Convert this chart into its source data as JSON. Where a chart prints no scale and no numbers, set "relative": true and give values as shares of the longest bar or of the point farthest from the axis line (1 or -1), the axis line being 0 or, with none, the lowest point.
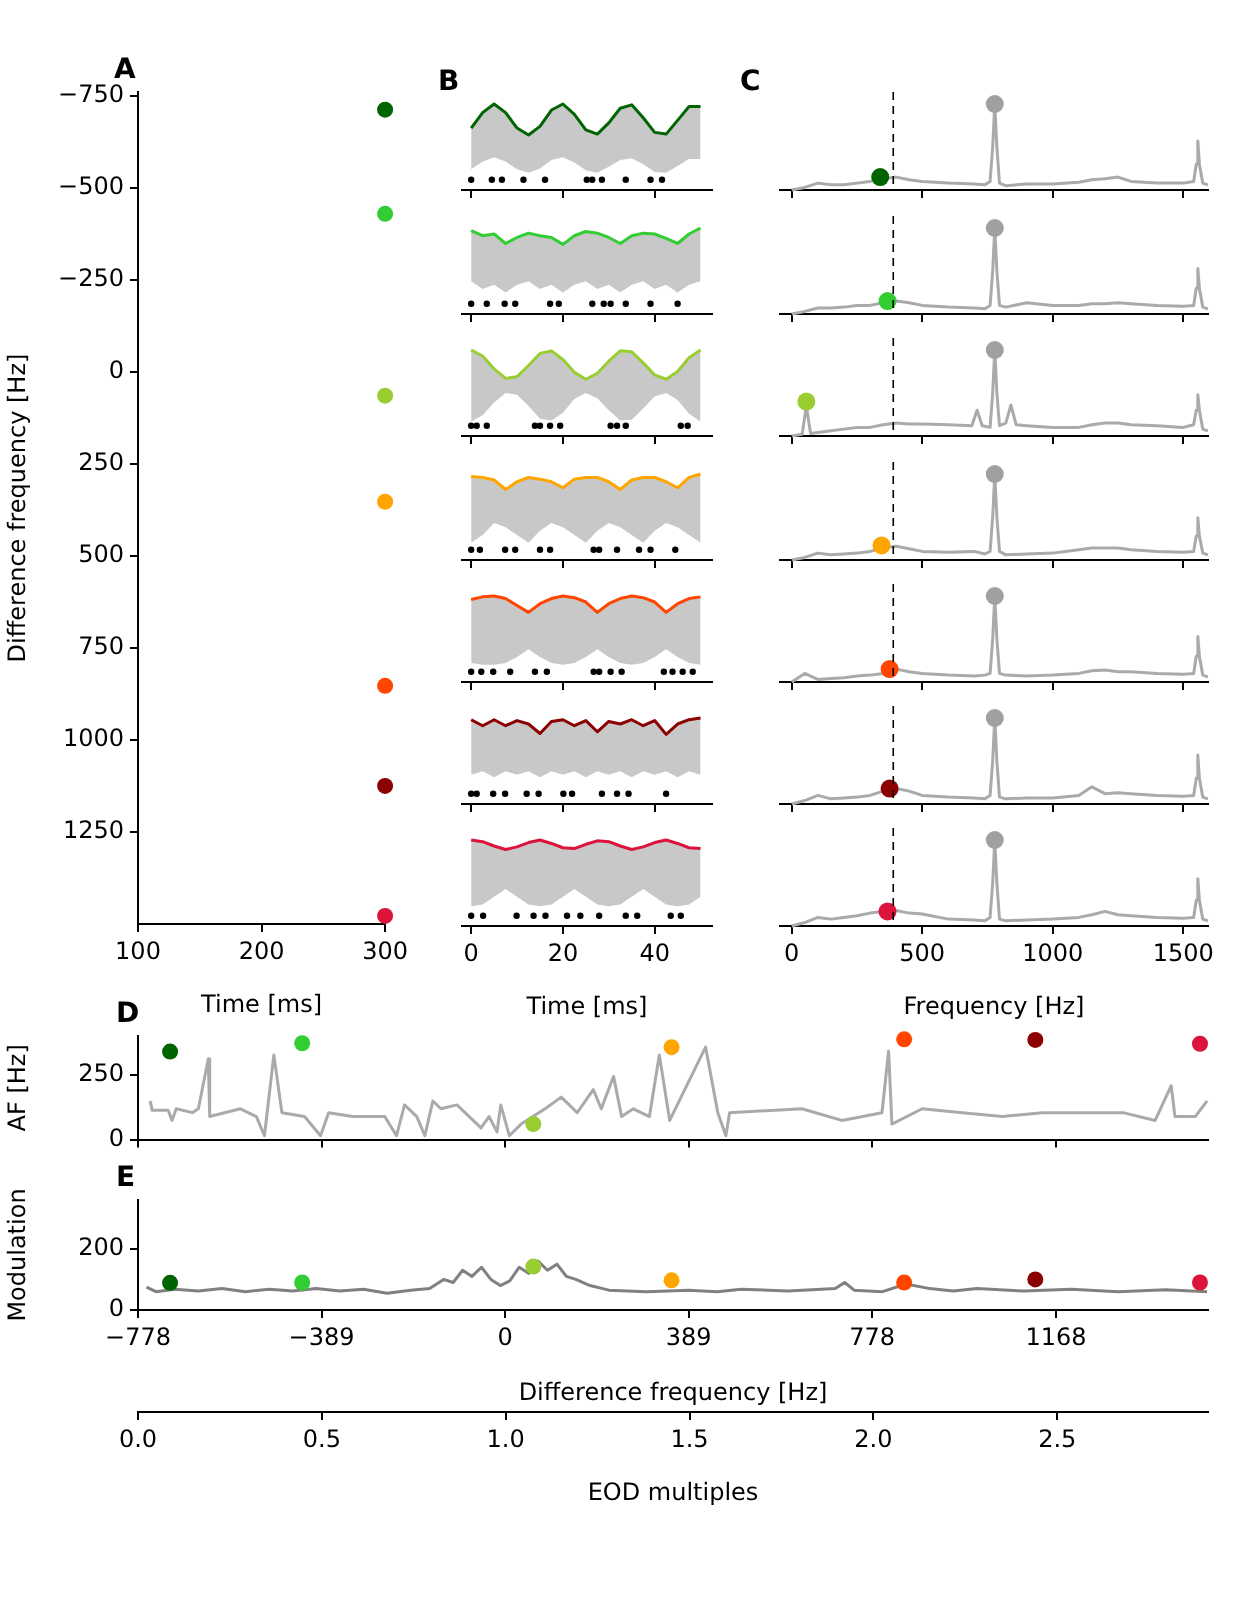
{
  "chart_data": [
    {
      "type": "scatter",
      "title": "A",
      "xlabel": "Time [ms]",
      "ylabel": "Difference frequency [Hz]",
      "xlim": [
        100,
        300
      ],
      "xticks": [
        100,
        200,
        300
      ],
      "ylim": [
        1500,
        -760
      ],
      "yticks": [
        {
          "value": -750,
          "label": "−750"
        },
        {
          "value": -500,
          "label": "−500"
        },
        {
          "value": -250,
          "label": "−250"
        },
        0,
        250,
        500,
        750,
        1000,
        1250
      ],
      "series": [
        {
          "marker": "circle",
          "x": [
            300,
            300,
            300,
            300,
            300,
            300,
            300
          ],
          "values": [
            -712,
            -429,
            65,
            353,
            853,
            1125,
            1478
          ],
          "colors": [
            "#006400",
            "#32cd32",
            "#9acd32",
            "#ffa500",
            "#ff4500",
            "#8b0000",
            "#dc143c"
          ]
        }
      ]
    },
    {
      "type": "line",
      "title": "B",
      "relative": true,
      "tick_labels": false,
      "xlim": [
        -2,
        52.5
      ],
      "xticks": [
        0,
        20,
        40
      ],
      "x": [
        0,
        2.5,
        5,
        7.5,
        10,
        12.5,
        15,
        17.5,
        20,
        22.5,
        25,
        27.5,
        30,
        32.5,
        35,
        37.5,
        40,
        42.5,
        45,
        47.5,
        50
      ],
      "series": [
        {
          "color": "#006400",
          "values": [
            0.72,
            0.9,
            1,
            0.9,
            0.72,
            0.64,
            0.74,
            0.93,
            1,
            0.88,
            0.7,
            0.65,
            0.78,
            0.95,
            0.99,
            0.84,
            0.67,
            0.65,
            0.81,
            0.97,
            0.97
          ],
          "lower": [
            0.24,
            0.33,
            0.38,
            0.33,
            0.24,
            0.2,
            0.25,
            0.35,
            0.38,
            0.32,
            0.23,
            0.2,
            0.27,
            0.35,
            0.37,
            0.3,
            0.21,
            0.2,
            0.28,
            0.36,
            0.36
          ],
          "upper": [
            0.72,
            0.9,
            1,
            0.9,
            0.72,
            0.64,
            0.74,
            0.93,
            1,
            0.88,
            0.7,
            0.65,
            0.78,
            0.95,
            0.99,
            0.84,
            0.67,
            0.65,
            0.81,
            0.97,
            0.97
          ]
        },
        {
          "type": "scatter",
          "marker": "circle",
          "color": "#000000",
          "x": [
            0,
            4.5,
            6.7,
            11.4,
            16.1,
            25.2,
            26.4,
            28.5,
            33.7,
            39.1,
            41.6
          ],
          "values": [
            0.12,
            0.12,
            0.12,
            0.12,
            0.12,
            0.12,
            0.12,
            0.12,
            0.12,
            0.12,
            0.12
          ]
        }
      ]
    },
    {
      "type": "line",
      "relative": true,
      "tick_labels": false,
      "xlim": [
        -2,
        52.5
      ],
      "xticks": [
        0,
        20,
        40
      ],
      "x": [
        0,
        2.5,
        5,
        7.5,
        10,
        12.5,
        15,
        17.5,
        20,
        22.5,
        25,
        27.5,
        30,
        32.5,
        35,
        37.5,
        40,
        42.5,
        45,
        47.5,
        50
      ],
      "series": [
        {
          "color": "#32cd32",
          "values": [
            0.97,
            0.91,
            0.93,
            0.82,
            0.89,
            0.94,
            0.91,
            0.89,
            0.81,
            0.91,
            0.96,
            0.94,
            0.89,
            0.82,
            0.91,
            0.94,
            0.93,
            0.88,
            0.82,
            0.93,
            1
          ],
          "lower": [
            0.38,
            0.29,
            0.34,
            0.25,
            0.34,
            0.38,
            0.29,
            0.34,
            0.25,
            0.34,
            0.38,
            0.29,
            0.34,
            0.25,
            0.34,
            0.38,
            0.29,
            0.34,
            0.25,
            0.34,
            0.38
          ],
          "upper": [
            0.97,
            0.91,
            0.93,
            0.82,
            0.89,
            0.94,
            0.91,
            0.89,
            0.81,
            0.91,
            0.96,
            0.94,
            0.89,
            0.82,
            0.91,
            0.94,
            0.93,
            0.88,
            0.82,
            0.93,
            1
          ]
        },
        {
          "type": "scatter",
          "marker": "circle",
          "color": "#000000",
          "x": [
            0,
            3.4,
            7.3,
            9.6,
            17.2,
            19.1,
            26.4,
            28.9,
            30.4,
            33.7,
            39.1,
            45
          ],
          "values": [
            0.12,
            0.12,
            0.12,
            0.12,
            0.12,
            0.12,
            0.12,
            0.12,
            0.12,
            0.12,
            0.12,
            0.12
          ]
        }
      ]
    },
    {
      "type": "line",
      "relative": true,
      "tick_labels": false,
      "xlim": [
        -2,
        52.5
      ],
      "xticks": [
        0,
        20,
        40
      ],
      "x": [
        0,
        2.5,
        5,
        7.5,
        10,
        12.5,
        15,
        17.5,
        20,
        22.5,
        25,
        27.5,
        30,
        32.5,
        35,
        37.5,
        40,
        42.5,
        45,
        47.5,
        50
      ],
      "series": [
        {
          "color": "#9acd32",
          "values": [
            1,
            0.93,
            0.78,
            0.67,
            0.69,
            0.82,
            0.96,
            0.99,
            0.89,
            0.74,
            0.66,
            0.73,
            0.87,
            0.99,
            0.98,
            0.85,
            0.71,
            0.66,
            0.75,
            0.91,
            1
          ],
          "lower": [
            0.17,
            0.24,
            0.39,
            0.5,
            0.48,
            0.35,
            0.2,
            0.18,
            0.27,
            0.43,
            0.5,
            0.44,
            0.3,
            0.18,
            0.19,
            0.32,
            0.46,
            0.5,
            0.42,
            0.26,
            0.17
          ],
          "upper": [
            1,
            0.93,
            0.78,
            0.67,
            0.69,
            0.82,
            0.96,
            0.99,
            0.89,
            0.74,
            0.66,
            0.73,
            0.87,
            0.99,
            0.98,
            0.85,
            0.71,
            0.66,
            0.75,
            0.91,
            1
          ]
        },
        {
          "type": "scatter",
          "marker": "circle",
          "color": "#000000",
          "x": [
            0,
            1.2,
            3.4,
            13.9,
            15,
            17.2,
            19.4,
            30.4,
            31.8,
            33.7,
            45.7,
            47.2
          ],
          "values": [
            0.12,
            0.12,
            0.12,
            0.12,
            0.12,
            0.12,
            0.12,
            0.12,
            0.12,
            0.12,
            0.12,
            0.12
          ]
        }
      ]
    },
    {
      "type": "line",
      "relative": true,
      "tick_labels": false,
      "xlim": [
        -2,
        52.5
      ],
      "xticks": [
        0,
        20,
        40
      ],
      "x": [
        0,
        2.5,
        5,
        7.5,
        10,
        12.5,
        15,
        17.5,
        20,
        22.5,
        25,
        27.5,
        30,
        32.5,
        35,
        37.5,
        40,
        42.5,
        45,
        47.5,
        50
      ],
      "series": [
        {
          "color": "#ffa500",
          "values": [
            0.97,
            0.96,
            0.93,
            0.82,
            0.91,
            0.96,
            0.94,
            0.91,
            0.84,
            0.94,
            0.96,
            0.96,
            0.91,
            0.82,
            0.93,
            0.96,
            0.96,
            0.91,
            0.84,
            0.96,
            1
          ],
          "lower": [
            0.2,
            0.29,
            0.43,
            0.38,
            0.29,
            0.2,
            0.34,
            0.43,
            0.38,
            0.29,
            0.2,
            0.34,
            0.43,
            0.38,
            0.29,
            0.2,
            0.34,
            0.43,
            0.38,
            0.29,
            0.2
          ],
          "upper": [
            0.97,
            0.96,
            0.93,
            0.82,
            0.91,
            0.96,
            0.94,
            0.91,
            0.84,
            0.94,
            0.96,
            0.96,
            0.91,
            0.82,
            0.93,
            0.96,
            0.96,
            0.91,
            0.84,
            0.96,
            1
          ]
        },
        {
          "type": "scatter",
          "marker": "circle",
          "color": "#000000",
          "x": [
            0,
            1.9,
            7.4,
            9.6,
            15,
            17.2,
            26.7,
            27.9,
            31.8,
            36.6,
            39.1,
            44.5
          ],
          "values": [
            0.12,
            0.12,
            0.12,
            0.12,
            0.12,
            0.12,
            0.12,
            0.12,
            0.12,
            0.12,
            0.12,
            0.12
          ]
        }
      ]
    },
    {
      "type": "line",
      "relative": true,
      "tick_labels": false,
      "xlim": [
        -2,
        52.5
      ],
      "xticks": [
        0,
        20,
        40
      ],
      "x": [
        0,
        2.5,
        5,
        7.5,
        10,
        12.5,
        15,
        17.5,
        20,
        22.5,
        25,
        27.5,
        30,
        32.5,
        35,
        37.5,
        40,
        42.5,
        45,
        47.5,
        50
      ],
      "series": [
        {
          "color": "#ff4500",
          "values": [
            0.96,
            0.99,
            1,
            0.97,
            0.89,
            0.81,
            0.91,
            0.97,
            1,
            0.98,
            0.93,
            0.81,
            0.91,
            0.97,
            1,
            0.98,
            0.93,
            0.81,
            0.91,
            0.97,
            0.99
          ],
          "lower": [
            0.22,
            0.2,
            0.2,
            0.22,
            0.29,
            0.38,
            0.29,
            0.22,
            0.2,
            0.22,
            0.29,
            0.38,
            0.29,
            0.22,
            0.2,
            0.22,
            0.29,
            0.38,
            0.29,
            0.22,
            0.2
          ],
          "upper": [
            0.96,
            0.99,
            1,
            0.97,
            0.89,
            0.81,
            0.91,
            0.97,
            1,
            0.98,
            0.93,
            0.81,
            0.91,
            0.97,
            1,
            0.98,
            0.93,
            0.81,
            0.91,
            0.97,
            0.99
          ]
        },
        {
          "type": "scatter",
          "marker": "circle",
          "color": "#000000",
          "x": [
            0,
            2.2,
            4.8,
            8.5,
            13.9,
            16.5,
            26.7,
            27.9,
            30.4,
            32.8,
            42,
            43.9,
            46.1,
            48.3
          ],
          "values": [
            0.12,
            0.12,
            0.12,
            0.12,
            0.12,
            0.12,
            0.12,
            0.12,
            0.12,
            0.12,
            0.12,
            0.12,
            0.12,
            0.12
          ]
        }
      ]
    },
    {
      "type": "line",
      "relative": true,
      "tick_labels": false,
      "xlim": [
        -2,
        52.5
      ],
      "xticks": [
        0,
        20,
        40
      ],
      "x": [
        0,
        2.5,
        5,
        7.5,
        10,
        12.5,
        15,
        17.5,
        20,
        22.5,
        25,
        27.5,
        30,
        32.5,
        35,
        37.5,
        40,
        42.5,
        45,
        47.5,
        50
      ],
      "series": [
        {
          "color": "#8b0000",
          "values": [
            0.98,
            0.91,
            0.98,
            0.91,
            0.97,
            0.93,
            0.82,
            0.96,
            0.98,
            0.91,
            0.97,
            0.84,
            0.96,
            0.93,
            0.98,
            0.91,
            0.97,
            0.81,
            0.93,
            0.98,
            1
          ],
          "lower": [
            0.34,
            0.38,
            0.31,
            0.38,
            0.34,
            0.38,
            0.31,
            0.38,
            0.34,
            0.38,
            0.31,
            0.38,
            0.34,
            0.38,
            0.31,
            0.38,
            0.34,
            0.38,
            0.31,
            0.38,
            0.34
          ],
          "upper": [
            0.98,
            0.91,
            0.98,
            0.91,
            0.97,
            0.93,
            0.82,
            0.96,
            0.98,
            0.91,
            0.97,
            0.84,
            0.96,
            0.93,
            0.98,
            0.91,
            0.97,
            0.81,
            0.93,
            0.98,
            1
          ]
        },
        {
          "type": "scatter",
          "marker": "circle",
          "color": "#000000",
          "x": [
            0,
            1.2,
            4.8,
            7.4,
            12.1,
            14.7,
            20.1,
            22,
            28.5,
            31.8,
            34.3,
            42.5
          ],
          "values": [
            0.12,
            0.12,
            0.12,
            0.12,
            0.12,
            0.12,
            0.12,
            0.12,
            0.12,
            0.12,
            0.12,
            0.12
          ]
        }
      ]
    },
    {
      "type": "line",
      "relative": true,
      "tick_labels": "x",
      "xlabel": "Time [ms]",
      "xlim": [
        -2,
        52.5
      ],
      "xticks": [
        0,
        20,
        40
      ],
      "x": [
        0,
        2.5,
        5,
        7.5,
        10,
        12.5,
        15,
        17.5,
        20,
        22.5,
        25,
        27.5,
        30,
        32.5,
        35,
        37.5,
        40,
        42.5,
        45,
        47.5,
        50
      ],
      "series": [
        {
          "color": "#dc143c",
          "values": [
            1,
            0.98,
            0.93,
            0.89,
            0.92,
            0.97,
            1,
            0.96,
            0.91,
            0.9,
            0.95,
            0.99,
            0.98,
            0.93,
            0.89,
            0.92,
            0.97,
            1,
            0.96,
            0.91,
            0.9
          ],
          "lower": [
            0.23,
            0.25,
            0.34,
            0.43,
            0.34,
            0.25,
            0.23,
            0.25,
            0.34,
            0.43,
            0.34,
            0.25,
            0.23,
            0.25,
            0.34,
            0.43,
            0.34,
            0.25,
            0.23,
            0.25,
            0.34
          ],
          "upper": [
            1,
            0.98,
            0.93,
            0.89,
            0.92,
            0.97,
            1,
            0.96,
            0.91,
            0.9,
            0.95,
            0.99,
            0.98,
            0.93,
            0.89,
            0.92,
            0.97,
            1,
            0.96,
            0.91,
            0.9
          ]
        },
        {
          "type": "scatter",
          "marker": "circle",
          "color": "#000000",
          "x": [
            0,
            2.6,
            9.9,
            13.6,
            16.2,
            20.9,
            23.8,
            27.9,
            33.7,
            36.2,
            43.5,
            45.7
          ],
          "values": [
            0.12,
            0.12,
            0.12,
            0.12,
            0.12,
            0.12,
            0.12,
            0.12,
            0.12,
            0.12,
            0.12,
            0.12
          ]
        }
      ]
    },
    {
      "type": "line",
      "title": "C",
      "relative": true,
      "tick_labels": false,
      "xlim": [
        -45,
        1595
      ],
      "xticks": [
        0,
        500,
        1000,
        1500
      ],
      "ref_lines": [
        {
          "axis": "x",
          "value": 389,
          "color": "#000000",
          "line_style": "dashed"
        }
      ],
      "x": [
        0,
        50,
        100,
        150,
        200,
        250,
        300,
        350,
        400,
        450,
        500,
        600,
        700,
        740,
        760,
        770,
        778,
        786,
        796,
        820,
        900,
        1000,
        1100,
        1150,
        1200,
        1250,
        1300,
        1400,
        1500,
        1540,
        1550,
        1556,
        1562,
        1575,
        1595
      ],
      "series": [
        {
          "color": "#aaaaaa",
          "values": [
            0,
            0.03,
            0.08,
            0.06,
            0.06,
            0.08,
            0.1,
            0.13,
            0.15,
            0.12,
            0.1,
            0.08,
            0.07,
            0.06,
            0.1,
            0.5,
            1,
            0.5,
            0.08,
            0.05,
            0.07,
            0.07,
            0.09,
            0.12,
            0.13,
            0.15,
            0.1,
            0.08,
            0.08,
            0.1,
            0.3,
            0.57,
            0.3,
            0.08,
            0.06
          ]
        },
        {
          "type": "scatter",
          "marker": "circle",
          "color": "#a0a0a0",
          "x": [
            778
          ],
          "values": [
            1
          ]
        },
        {
          "type": "scatter",
          "marker": "circle",
          "color": "#006400",
          "x": [
            339
          ],
          "values": [
            0.15
          ]
        }
      ]
    },
    {
      "type": "line",
      "relative": true,
      "tick_labels": false,
      "xlim": [
        -45,
        1595
      ],
      "xticks": [
        0,
        500,
        1000,
        1500
      ],
      "ref_lines": [
        {
          "axis": "x",
          "value": 389,
          "color": "#000000",
          "line_style": "dashed"
        }
      ],
      "x": [
        0,
        50,
        100,
        150,
        200,
        250,
        300,
        350,
        400,
        450,
        500,
        600,
        700,
        740,
        760,
        770,
        778,
        786,
        796,
        820,
        900,
        1000,
        1100,
        1150,
        1200,
        1250,
        1300,
        1400,
        1500,
        1540,
        1550,
        1556,
        1562,
        1575,
        1595
      ],
      "series": [
        {
          "color": "#aaaaaa",
          "values": [
            0,
            0.03,
            0.07,
            0.07,
            0.08,
            0.1,
            0.1,
            0.13,
            0.15,
            0.13,
            0.1,
            0.08,
            0.07,
            0.06,
            0.1,
            0.5,
            1,
            0.5,
            0.1,
            0.08,
            0.13,
            0.1,
            0.1,
            0.12,
            0.12,
            0.13,
            0.12,
            0.1,
            0.09,
            0.1,
            0.3,
            0.53,
            0.3,
            0.08,
            0.06
          ]
        },
        {
          "type": "scatter",
          "marker": "circle",
          "color": "#a0a0a0",
          "x": [
            778
          ],
          "values": [
            1
          ]
        },
        {
          "type": "scatter",
          "marker": "circle",
          "color": "#32cd32",
          "x": [
            367
          ],
          "values": [
            0.15
          ]
        }
      ]
    },
    {
      "type": "line",
      "relative": true,
      "tick_labels": false,
      "xlim": [
        -45,
        1595
      ],
      "xticks": [
        0,
        500,
        1000,
        1500
      ],
      "ref_lines": [
        {
          "axis": "x",
          "value": 389,
          "color": "#000000",
          "line_style": "dashed"
        }
      ],
      "series": [
        {
          "color": "#aaaaaa",
          "x": [
            0,
            40,
            56,
            72,
            100,
            150,
            200,
            250,
            300,
            350,
            400,
            450,
            500,
            600,
            690,
            710,
            730,
            760,
            770,
            778,
            786,
            796,
            820,
            840,
            860,
            900,
            1000,
            1100,
            1150,
            1200,
            1250,
            1300,
            1400,
            1500,
            1540,
            1550,
            1556,
            1562,
            1575,
            1595
          ],
          "values": [
            0,
            0.02,
            0.35,
            0.03,
            0.04,
            0.06,
            0.08,
            0.1,
            0.1,
            0.13,
            0.15,
            0.14,
            0.14,
            0.13,
            0.12,
            0.3,
            0.12,
            0.1,
            0.5,
            1,
            0.5,
            0.12,
            0.15,
            0.36,
            0.13,
            0.12,
            0.1,
            0.1,
            0.13,
            0.15,
            0.15,
            0.13,
            0.12,
            0.1,
            0.13,
            0.3,
            0.48,
            0.3,
            0.08,
            0.06
          ]
        },
        {
          "type": "scatter",
          "marker": "circle",
          "color": "#a0a0a0",
          "x": [
            778
          ],
          "values": [
            1
          ]
        },
        {
          "type": "scatter",
          "marker": "circle",
          "color": "#9acd32",
          "x": [
            56
          ],
          "values": [
            0.4
          ]
        }
      ]
    },
    {
      "type": "line",
      "relative": true,
      "tick_labels": false,
      "xlim": [
        -45,
        1595
      ],
      "xticks": [
        0,
        500,
        1000,
        1500
      ],
      "ref_lines": [
        {
          "axis": "x",
          "value": 389,
          "color": "#000000",
          "line_style": "dashed"
        }
      ],
      "x": [
        0,
        50,
        100,
        150,
        200,
        250,
        300,
        350,
        400,
        450,
        500,
        600,
        700,
        740,
        760,
        770,
        778,
        786,
        796,
        820,
        900,
        1000,
        1100,
        1150,
        1200,
        1250,
        1300,
        1400,
        1500,
        1540,
        1550,
        1556,
        1562,
        1575,
        1595
      ],
      "series": [
        {
          "color": "#aaaaaa",
          "values": [
            0,
            0.03,
            0.08,
            0.06,
            0.07,
            0.08,
            0.1,
            0.14,
            0.16,
            0.13,
            0.1,
            0.09,
            0.1,
            0.07,
            0.1,
            0.5,
            1,
            0.5,
            0.1,
            0.06,
            0.07,
            0.08,
            0.12,
            0.14,
            0.14,
            0.14,
            0.12,
            0.1,
            0.09,
            0.1,
            0.28,
            0.49,
            0.28,
            0.08,
            0.06
          ]
        },
        {
          "type": "scatter",
          "marker": "circle",
          "color": "#a0a0a0",
          "x": [
            778
          ],
          "values": [
            1
          ]
        },
        {
          "type": "scatter",
          "marker": "circle",
          "color": "#ffa500",
          "x": [
            344
          ],
          "values": [
            0.17
          ]
        }
      ]
    },
    {
      "type": "line",
      "relative": true,
      "tick_labels": false,
      "xlim": [
        -45,
        1595
      ],
      "xticks": [
        0,
        500,
        1000,
        1500
      ],
      "ref_lines": [
        {
          "axis": "x",
          "value": 389,
          "color": "#000000",
          "line_style": "dashed"
        }
      ],
      "x": [
        0,
        50,
        100,
        150,
        200,
        250,
        300,
        350,
        400,
        450,
        500,
        600,
        700,
        740,
        760,
        770,
        778,
        786,
        796,
        820,
        900,
        1000,
        1100,
        1150,
        1200,
        1250,
        1300,
        1400,
        1500,
        1540,
        1550,
        1556,
        1562,
        1575,
        1595
      ],
      "series": [
        {
          "color": "#aaaaaa",
          "values": [
            0,
            0.1,
            0.03,
            0.04,
            0.05,
            0.07,
            0.08,
            0.1,
            0.15,
            0.12,
            0.1,
            0.08,
            0.07,
            0.08,
            0.1,
            0.5,
            1,
            0.5,
            0.1,
            0.08,
            0.07,
            0.08,
            0.1,
            0.13,
            0.14,
            0.12,
            0.12,
            0.1,
            0.09,
            0.1,
            0.3,
            0.53,
            0.3,
            0.08,
            0.06
          ]
        },
        {
          "type": "scatter",
          "marker": "circle",
          "color": "#a0a0a0",
          "x": [
            778
          ],
          "values": [
            1
          ]
        },
        {
          "type": "scatter",
          "marker": "circle",
          "color": "#ff4500",
          "x": [
            375
          ],
          "values": [
            0.15
          ]
        }
      ]
    },
    {
      "type": "line",
      "relative": true,
      "tick_labels": false,
      "xlim": [
        -45,
        1595
      ],
      "xticks": [
        0,
        500,
        1000,
        1500
      ],
      "ref_lines": [
        {
          "axis": "x",
          "value": 389,
          "color": "#000000",
          "line_style": "dashed"
        }
      ],
      "x": [
        0,
        50,
        100,
        150,
        200,
        250,
        300,
        350,
        400,
        450,
        500,
        600,
        700,
        740,
        760,
        770,
        778,
        786,
        796,
        820,
        900,
        1000,
        1100,
        1150,
        1200,
        1250,
        1300,
        1400,
        1500,
        1540,
        1550,
        1556,
        1562,
        1575,
        1595
      ],
      "series": [
        {
          "color": "#aaaaaa",
          "values": [
            0,
            0.04,
            0.1,
            0.06,
            0.07,
            0.08,
            0.1,
            0.15,
            0.18,
            0.15,
            0.1,
            0.08,
            0.07,
            0.06,
            0.1,
            0.5,
            1,
            0.5,
            0.08,
            0.06,
            0.07,
            0.07,
            0.1,
            0.2,
            0.12,
            0.13,
            0.12,
            0.1,
            0.09,
            0.1,
            0.3,
            0.57,
            0.3,
            0.08,
            0.06
          ]
        },
        {
          "type": "scatter",
          "marker": "circle",
          "color": "#a0a0a0",
          "x": [
            778
          ],
          "values": [
            1
          ]
        },
        {
          "type": "scatter",
          "marker": "circle",
          "color": "#8b0000",
          "x": [
            375
          ],
          "values": [
            0.18
          ]
        }
      ]
    },
    {
      "type": "line",
      "relative": true,
      "tick_labels": "x",
      "xlabel": "Frequency [Hz]",
      "xlim": [
        -45,
        1595
      ],
      "xticks": [
        0,
        500,
        1000,
        1500
      ],
      "ref_lines": [
        {
          "axis": "x",
          "value": 389,
          "color": "#000000",
          "line_style": "dashed"
        }
      ],
      "x": [
        0,
        50,
        100,
        150,
        200,
        250,
        300,
        350,
        400,
        450,
        500,
        600,
        700,
        740,
        760,
        770,
        778,
        786,
        796,
        820,
        900,
        1000,
        1100,
        1150,
        1200,
        1250,
        1300,
        1400,
        1500,
        1540,
        1550,
        1556,
        1562,
        1575,
        1595
      ],
      "series": [
        {
          "color": "#aaaaaa",
          "values": [
            0,
            0.04,
            0.1,
            0.08,
            0.1,
            0.12,
            0.15,
            0.17,
            0.18,
            0.15,
            0.14,
            0.08,
            0.07,
            0.06,
            0.1,
            0.5,
            1,
            0.5,
            0.08,
            0.06,
            0.07,
            0.08,
            0.1,
            0.13,
            0.17,
            0.13,
            0.12,
            0.1,
            0.09,
            0.1,
            0.3,
            0.55,
            0.3,
            0.08,
            0.06
          ]
        },
        {
          "type": "scatter",
          "marker": "circle",
          "color": "#a0a0a0",
          "x": [
            778
          ],
          "values": [
            1
          ]
        },
        {
          "type": "scatter",
          "marker": "circle",
          "color": "#dc143c",
          "x": [
            367
          ],
          "values": [
            0.17
          ]
        }
      ]
    },
    {
      "type": "line",
      "title": "D",
      "ylabel": "AF [Hz]",
      "tick_labels": "y",
      "xlim": [
        -778,
        1490
      ],
      "xticks": [
        -778,
        -389,
        0,
        389,
        778,
        1168
      ],
      "ylim": [
        0,
        400
      ],
      "yticks": [
        0,
        250
      ],
      "series": [
        {
          "color": "#aaaaaa",
          "x": [
            -752,
            -748,
            -714,
            -706,
            -697,
            -663,
            -650,
            -629,
            -626,
            -561,
            -527,
            -510,
            -490,
            -473,
            -425,
            -391,
            -374,
            -323,
            -255,
            -230,
            -213,
            -187,
            -170,
            -153,
            -136,
            -102,
            -51,
            -34,
            -17,
            -9,
            9,
            34,
            85,
            119,
            153,
            187,
            204,
            230,
            247,
            272,
            306,
            327,
            349,
            425,
            451,
            468,
            476,
            629,
            714,
            799,
            813,
            820,
            884,
            969,
            1054,
            1139,
            1224,
            1310,
            1378,
            1412,
            1420,
            1463,
            1488
          ],
          "values": [
            149,
            113,
            113,
            74,
            119,
            104,
            119,
            312,
            89,
            119,
            89,
            15,
            327,
            104,
            89,
            15,
            104,
            89,
            89,
            15,
            134,
            89,
            15,
            149,
            119,
            134,
            45,
            89,
            30,
            134,
            15,
            60,
            119,
            164,
            104,
            193,
            119,
            244,
            89,
            119,
            89,
            327,
            74,
            357,
            104,
            15,
            104,
            119,
            74,
            104,
            342,
            60,
            119,
            104,
            89,
            104,
            104,
            104,
            74,
            208,
            89,
            89,
            149
          ]
        },
        {
          "type": "scatter",
          "marker": "circle",
          "x": [
            -710,
            -430,
            60,
            353,
            846,
            1124,
            1473
          ],
          "values": [
            340,
            372,
            60,
            357,
            387,
            385,
            370
          ],
          "colors": [
            "#006400",
            "#32cd32",
            "#9acd32",
            "#ffa500",
            "#ff4500",
            "#8b0000",
            "#dc143c"
          ]
        }
      ]
    },
    {
      "type": "line",
      "title": "E",
      "xlabel": "Difference frequency [Hz]",
      "ylabel": "Modulation",
      "x2label": "EOD multiples",
      "xlim": [
        -778,
        1490
      ],
      "xticks": [
        {
          "value": -778,
          "label": "−778"
        },
        {
          "value": -389,
          "label": "−389"
        },
        0,
        389,
        778,
        1168
      ],
      "ylim": [
        0,
        360
      ],
      "yticks": [
        0,
        200
      ],
      "x2lim": [
        0,
        2.91
      ],
      "x2ticks": [
        {
          "value": 0,
          "label": "0.0"
        },
        {
          "value": 0.5,
          "label": "0.5"
        },
        {
          "value": 1,
          "label": "1.0"
        },
        {
          "value": 1.5,
          "label": "1.5"
        },
        {
          "value": 2,
          "label": "2.0"
        },
        {
          "value": 2.5,
          "label": "2.5"
        }
      ],
      "series": [
        {
          "color": "#808080",
          "x": [
            -760,
            -740,
            -700,
            -650,
            -600,
            -550,
            -500,
            -450,
            -400,
            -350,
            -300,
            -250,
            -200,
            -160,
            -130,
            -110,
            -90,
            -70,
            -50,
            -30,
            -10,
            10,
            30,
            50,
            70,
            90,
            110,
            130,
            150,
            180,
            220,
            300,
            389,
            450,
            500,
            600,
            700,
            720,
            740,
            800,
            850,
            900,
            950,
            1000,
            1100,
            1200,
            1300,
            1400,
            1488
          ],
          "values": [
            75,
            60,
            68,
            62,
            70,
            60,
            68,
            62,
            70,
            62,
            68,
            55,
            65,
            70,
            100,
            90,
            130,
            110,
            140,
            100,
            80,
            95,
            140,
            120,
            160,
            130,
            150,
            110,
            100,
            80,
            65,
            60,
            65,
            60,
            68,
            62,
            70,
            90,
            65,
            60,
            85,
            70,
            62,
            70,
            62,
            68,
            60,
            66,
            60
          ]
        },
        {
          "type": "scatter",
          "marker": "circle",
          "x": [
            -710,
            -430,
            60,
            353,
            846,
            1124,
            1473
          ],
          "values": [
            89,
            90,
            142,
            97,
            90,
            100,
            90
          ],
          "colors": [
            "#006400",
            "#32cd32",
            "#9acd32",
            "#ffa500",
            "#ff4500",
            "#8b0000",
            "#dc143c"
          ]
        }
      ]
    }
  ]
}
